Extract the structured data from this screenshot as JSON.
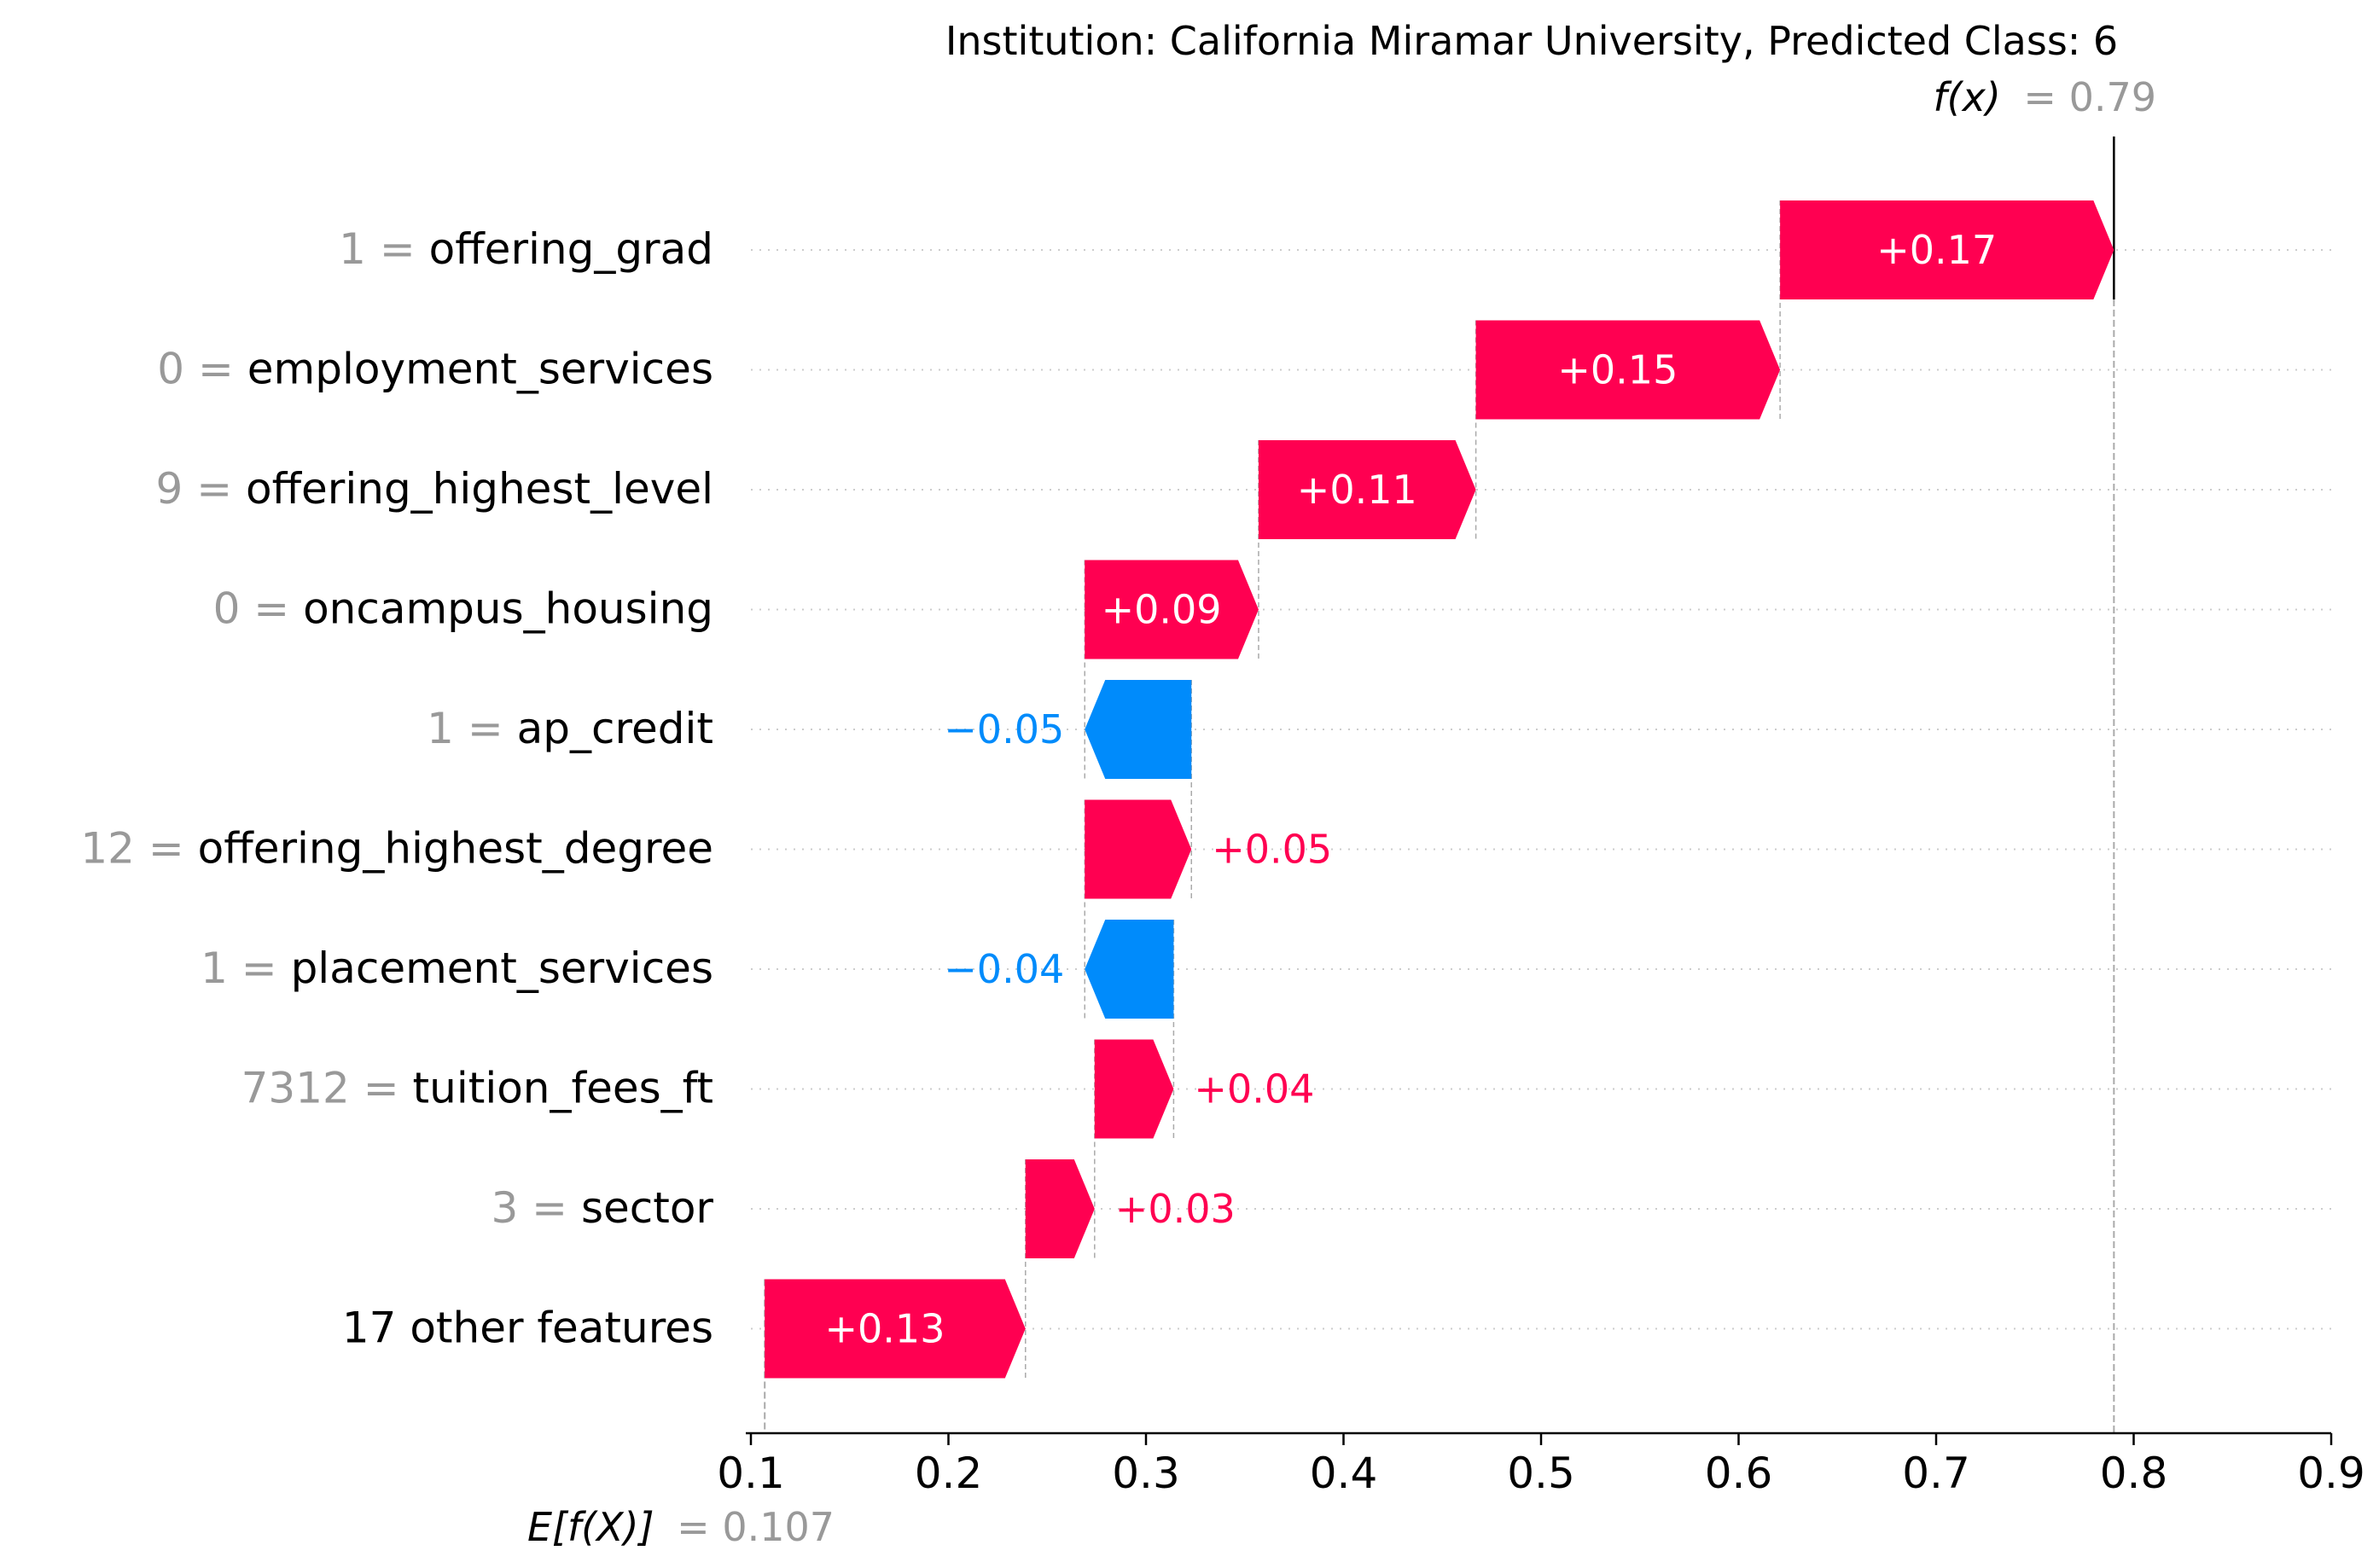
{
  "chart_data": {
    "type": "waterfall",
    "title": "Institution: California Miramar University, Predicted Class: 6",
    "base_value": 0.107,
    "base_label": "E[f(X)]",
    "base_value_text": "= 0.107",
    "output_value": 0.79,
    "output_label": "f(x)",
    "output_value_text": "= 0.79",
    "xlim": [
      0.1,
      0.9
    ],
    "xticks": [
      0.1,
      0.2,
      0.3,
      0.4,
      0.5,
      0.6,
      0.7,
      0.8,
      0.9
    ],
    "xtick_labels": [
      "0.1",
      "0.2",
      "0.3",
      "0.4",
      "0.5",
      "0.6",
      "0.7",
      "0.8",
      "0.9"
    ],
    "grid": "dotted horizontal row lines",
    "colors": {
      "positive": "#ff0051",
      "negative": "#008bfb",
      "feature_value": "#999999",
      "feature_name": "#000000"
    },
    "features": [
      {
        "value": "1",
        "name": "offering_grad",
        "start": 0.621,
        "end": 0.79,
        "label": "+0.17"
      },
      {
        "value": "0",
        "name": "employment_services",
        "start": 0.467,
        "end": 0.621,
        "label": "+0.15"
      },
      {
        "value": "9",
        "name": "offering_highest_level",
        "start": 0.357,
        "end": 0.467,
        "label": "+0.11"
      },
      {
        "value": "0",
        "name": "oncampus_housing",
        "start": 0.269,
        "end": 0.357,
        "label": "+0.09"
      },
      {
        "value": "1",
        "name": "ap_credit",
        "start": 0.323,
        "end": 0.269,
        "label": "−0.05"
      },
      {
        "value": "12",
        "name": "offering_highest_degree",
        "start": 0.269,
        "end": 0.323,
        "label": "+0.05"
      },
      {
        "value": "1",
        "name": "placement_services",
        "start": 0.314,
        "end": 0.269,
        "label": "−0.04"
      },
      {
        "value": "7312",
        "name": "tuition_fees_ft",
        "start": 0.274,
        "end": 0.314,
        "label": "+0.04"
      },
      {
        "value": "3",
        "name": "sector",
        "start": 0.239,
        "end": 0.274,
        "label": "+0.03"
      },
      {
        "value": "",
        "name": "17 other features",
        "start": 0.107,
        "end": 0.239,
        "label": "+0.13"
      }
    ]
  }
}
